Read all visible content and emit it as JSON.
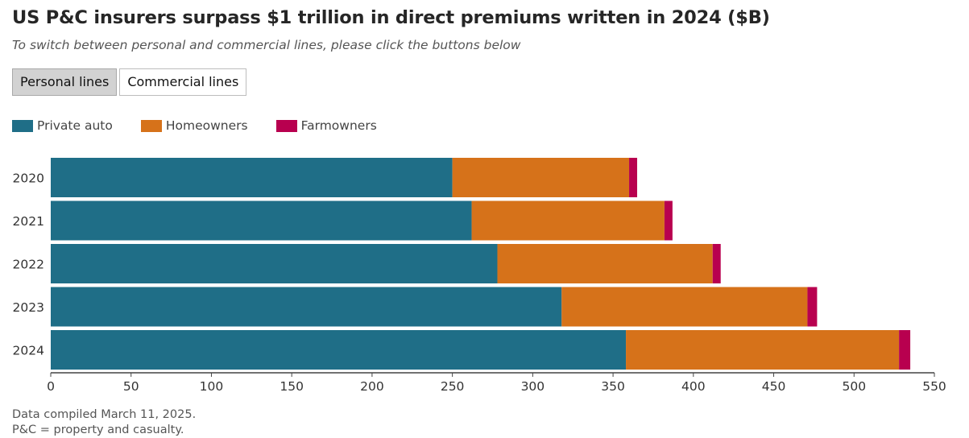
{
  "title": "US P&C insurers surpass $1 trillion in direct premiums written in 2024 ($B)",
  "subtitle": "To switch between personal and commercial lines, please click the buttons below",
  "buttons": {
    "personal": "Personal lines",
    "commercial": "Commercial lines",
    "active": "personal"
  },
  "notes": {
    "line1": "Data compiled March 11, 2025.",
    "line2": "P&C = property and casualty."
  },
  "chart_data": {
    "type": "bar",
    "orientation": "horizontal",
    "stacked": true,
    "categories": [
      "2020",
      "2021",
      "2022",
      "2023",
      "2024"
    ],
    "series": [
      {
        "name": "Private auto",
        "color": "#1f6e87",
        "values": [
          250,
          262,
          278,
          318,
          358
        ]
      },
      {
        "name": "Homeowners",
        "color": "#d6721a",
        "values": [
          110,
          120,
          134,
          153,
          170
        ]
      },
      {
        "name": "Farmowners",
        "color": "#b8004f",
        "values": [
          5,
          5,
          5,
          6,
          7
        ]
      }
    ],
    "xlim": [
      0,
      550
    ],
    "xticks": [
      "0",
      "50",
      "100",
      "150",
      "200",
      "250",
      "300",
      "350",
      "400",
      "450",
      "500",
      "550"
    ],
    "grid": false,
    "legend_position": "top-left"
  }
}
